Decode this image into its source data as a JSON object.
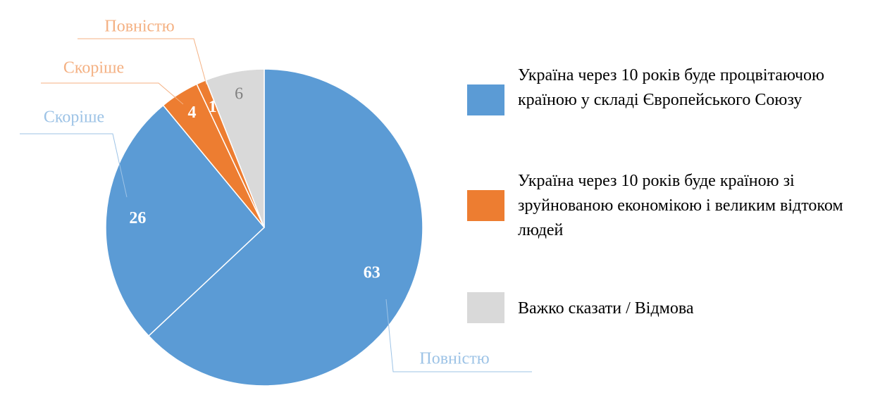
{
  "chart_data": {
    "type": "pie",
    "categories": [
      "Повністю",
      "Скоріше",
      "Скоріше",
      "Повністю",
      null
    ],
    "values": [
      63,
      26,
      4,
      1,
      6
    ],
    "colors": [
      "#5b9bd5",
      "#5b9bd5",
      "#ed7d31",
      "#ed7d31",
      "#d9d9d9"
    ],
    "category_label_colors": [
      "#9dc3e6",
      "#9dc3e6",
      "#f4b183",
      "#f4b183",
      null
    ],
    "value_label_colors": [
      "#ffffff",
      "#ffffff",
      "#ffffff",
      "#ffffff",
      "#808080"
    ],
    "legend": [
      {
        "name": "Україна через 10 років буде процвітаючою країною у складі Європейського Союзу",
        "color": "#5b9bd5"
      },
      {
        "name": "Україна через 10 років буде країною зі зруйнованою економікою і великим відтоком людей",
        "color": "#ed7d31"
      },
      {
        "name": "Важко сказати / Відмова",
        "color": "#d9d9d9"
      }
    ]
  }
}
